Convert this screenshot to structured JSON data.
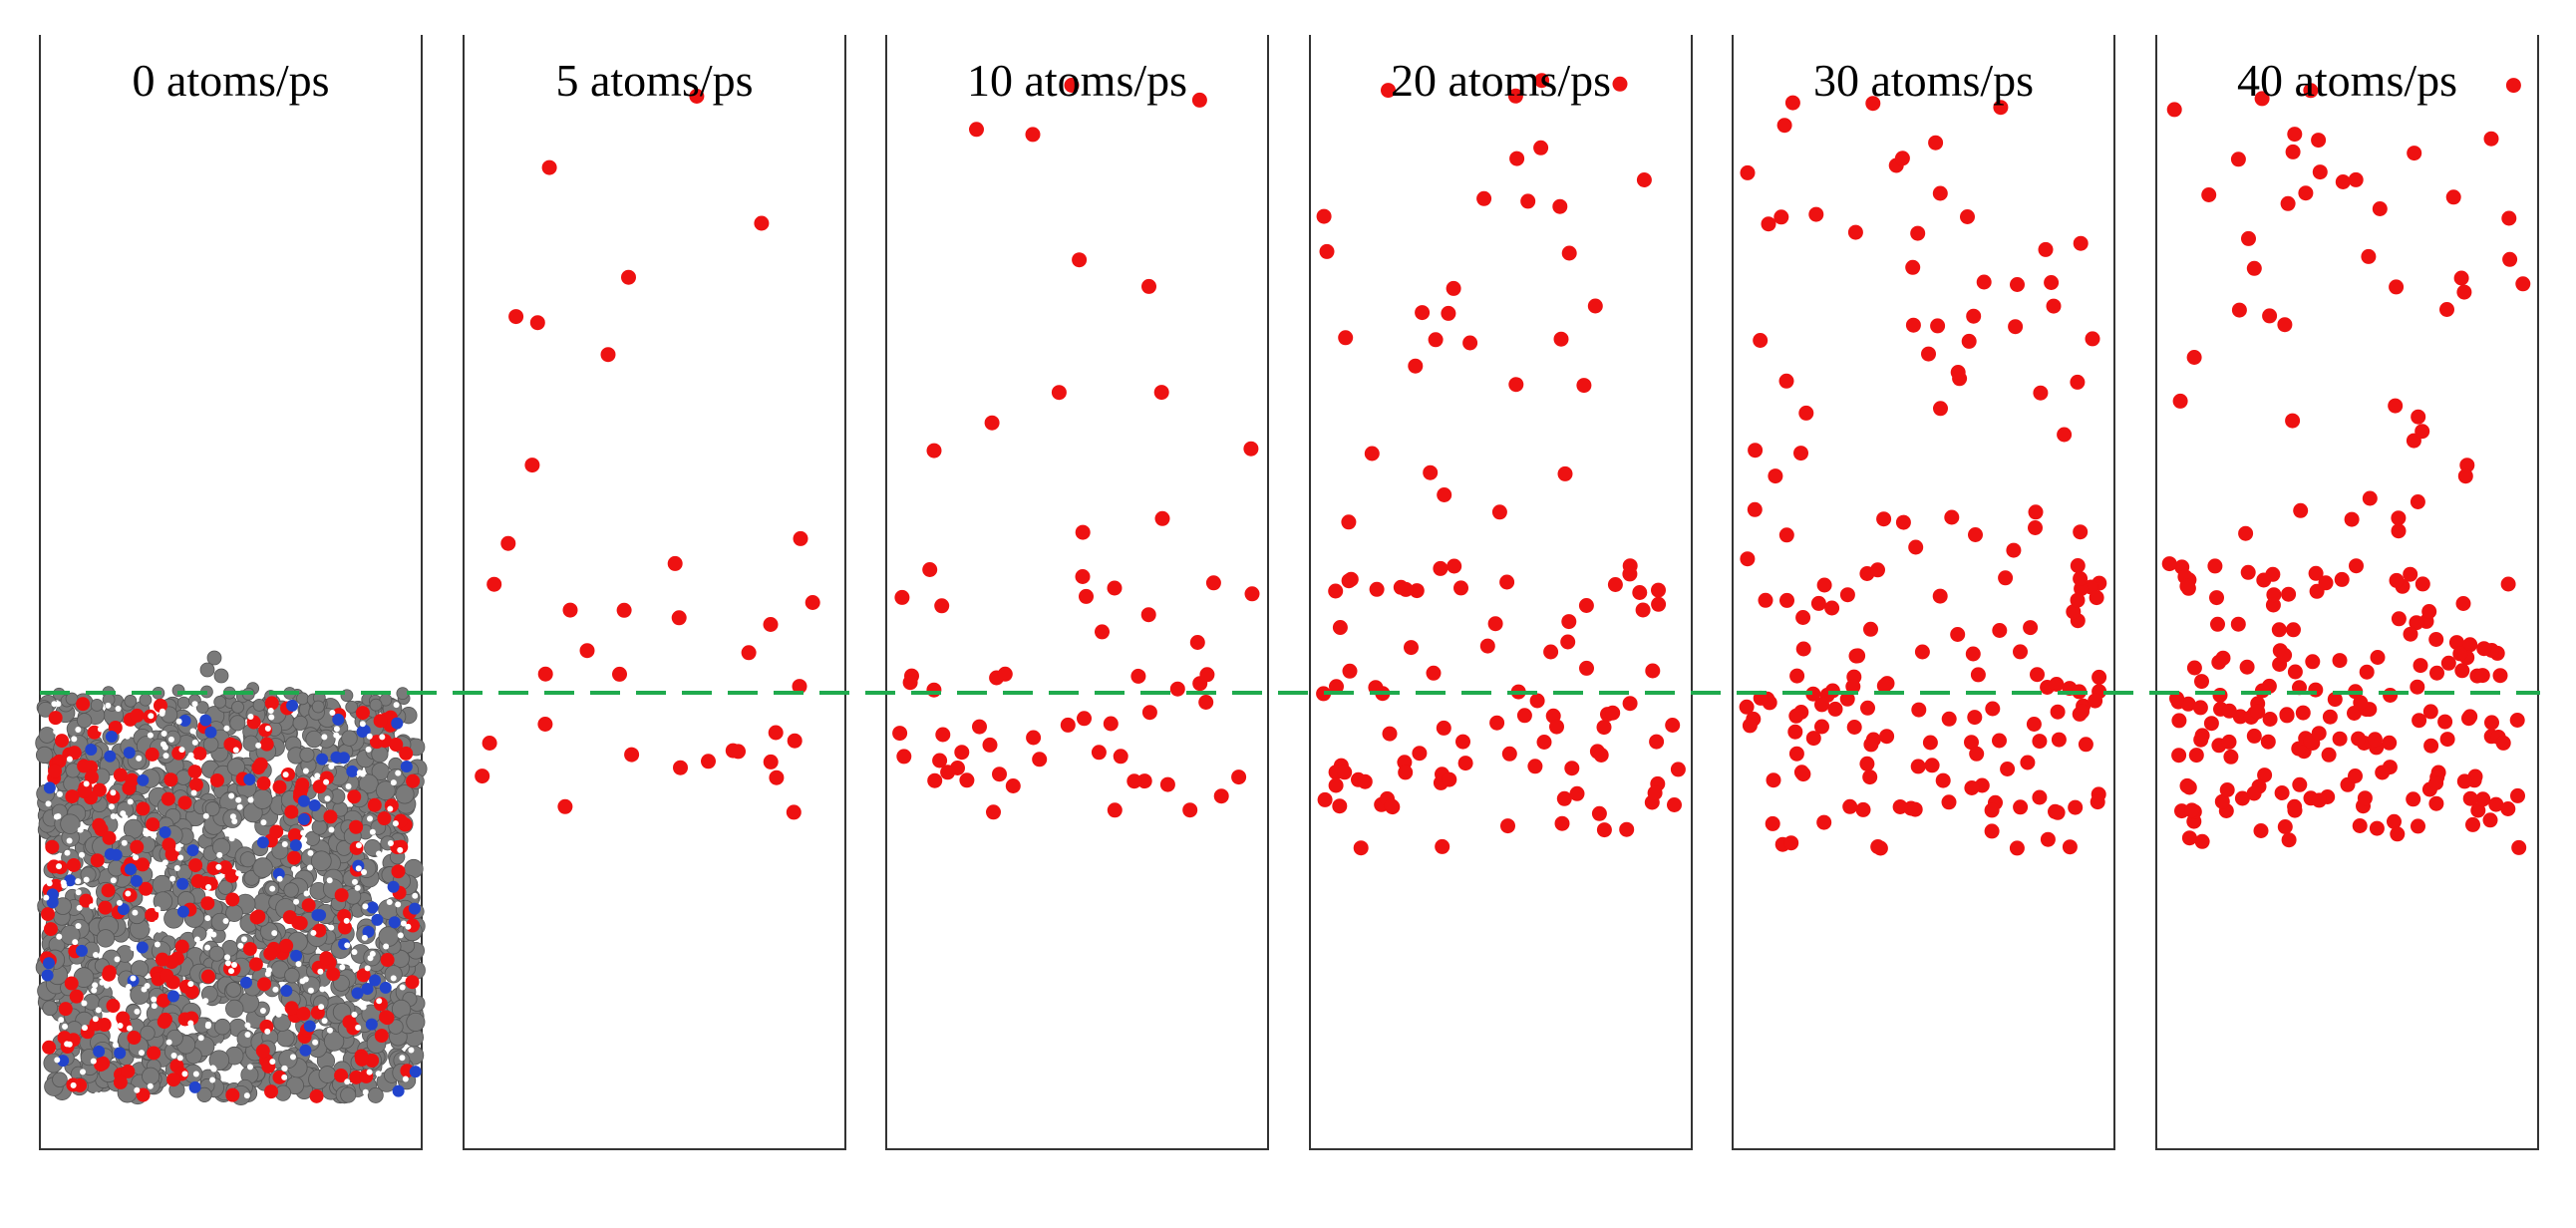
{
  "figure": {
    "reference_line_color": "#1faa4d",
    "atom_color": "#ee1111",
    "slab_colors": {
      "carbon": "#7a7a7a",
      "oxygen": "#ee1111",
      "nitrogen": "#2244cc",
      "hydrogen": "#ffffff"
    },
    "panels": [
      {
        "label": "0 atoms/ps",
        "rate": 0,
        "content": "polymer-slab"
      },
      {
        "label": "5 atoms/ps",
        "rate": 5,
        "content": "atoms"
      },
      {
        "label": "10 atoms/ps",
        "rate": 10,
        "content": "atoms"
      },
      {
        "label": "20 atoms/ps",
        "rate": 20,
        "content": "atoms"
      },
      {
        "label": "30 atoms/ps",
        "rate": 30,
        "content": "atoms"
      },
      {
        "label": "40 atoms/ps",
        "rate": 40,
        "content": "atoms"
      }
    ]
  }
}
